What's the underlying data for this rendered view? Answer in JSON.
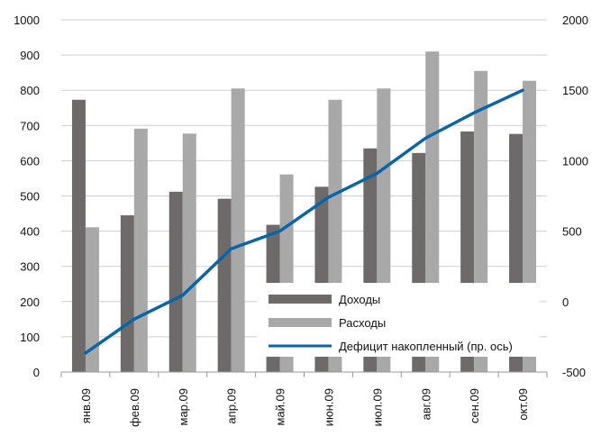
{
  "chart_data": {
    "type": "bar",
    "categories": [
      "янв.09",
      "фев.09",
      "мар.09",
      "апр.09",
      "май.09",
      "июн.09",
      "июл.09",
      "авг.09",
      "сен.09",
      "окт.09"
    ],
    "series": [
      {
        "name": "Доходы",
        "type": "bar",
        "axis": "left",
        "color": "#6e6a6a",
        "values": [
          773,
          445,
          512,
          492,
          418,
          526,
          635,
          622,
          683,
          676
        ]
      },
      {
        "name": "Расходы",
        "type": "bar",
        "axis": "left",
        "color": "#a8a8a8",
        "values": [
          411,
          691,
          677,
          805,
          561,
          773,
          805,
          910,
          855,
          827
        ]
      }
    ],
    "line_series": {
      "name": "Дефицит накопленный (пр. ось)",
      "type": "line",
      "axis": "right",
      "color": "#0a64a8",
      "values": [
        -365,
        -125,
        45,
        375,
        500,
        740,
        910,
        1160,
        1340,
        1500
      ]
    },
    "y_left": {
      "ylim": [
        0,
        1000
      ],
      "ticks": [
        "0",
        "100",
        "200",
        "300",
        "400",
        "500",
        "600",
        "700",
        "800",
        "900",
        "1000"
      ]
    },
    "y_right": {
      "ylim": [
        -500,
        2000
      ],
      "ticks": [
        "-500",
        "0",
        "500",
        "1000",
        "1500",
        "2000"
      ]
    },
    "grid": true,
    "legend_position": "bottom-right"
  }
}
